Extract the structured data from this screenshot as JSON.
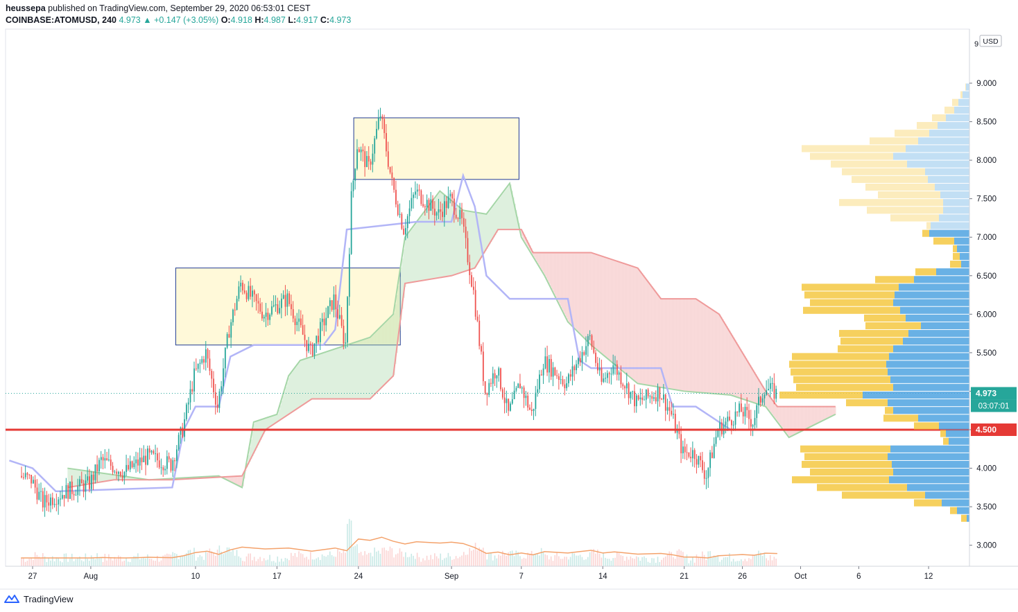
{
  "header": {
    "author": "heussepa",
    "published_text": "published on TradingView.com, September 29, 2020 06:53:01 CEST",
    "symbol": "COINBASE:ATOMUSD, 240",
    "last": "4.973",
    "change": "▲ +0.147 (+3.05%)",
    "o_label": "O:",
    "o_value": "4.918",
    "h_label": "H:",
    "h_value": "4.987",
    "l_label": "L:",
    "l_value": "4.917",
    "c_label": "C:",
    "c_value": "4.973"
  },
  "footer": {
    "brand": "TradingView"
  },
  "colors": {
    "up": "#26a69a",
    "down": "#ef5350",
    "base_line": "#b2b5f7",
    "cloud_green": "#a5d6a7",
    "cloud_red": "#ef9a9a",
    "box_fill": "#fff9d9",
    "box_border": "#1f3a93",
    "hline": "#e53935",
    "vp_up": "#4fa3e0",
    "vp_down": "#f5c842",
    "volume_ma": "#f4a26b"
  },
  "chart_data": {
    "type": "candlestick",
    "currency_label": "USD",
    "y_ticks": [
      "9.000",
      "8.500",
      "8.000",
      "7.500",
      "7.000",
      "6.500",
      "6.000",
      "5.500",
      "5.000",
      "4.500",
      "4.000",
      "3.500",
      "3.000"
    ],
    "ylim": [
      2.8,
      9.4
    ],
    "x_ticks": [
      "27",
      "Aug",
      "10",
      "17",
      "24",
      "Sep",
      "7",
      "14",
      "21",
      "26",
      "Oct",
      "6",
      "12"
    ],
    "close_path": [
      [
        "Jul 26",
        3.9
      ],
      [
        "Jul 27",
        3.85
      ],
      [
        "Jul 28",
        3.55
      ],
      [
        "Jul 30",
        3.7
      ],
      [
        "Aug 1",
        3.8
      ],
      [
        "Aug 2",
        4.1
      ],
      [
        "Aug 4",
        3.95
      ],
      [
        "Aug 6",
        4.15
      ],
      [
        "Aug 8",
        4.05
      ],
      [
        "Aug 9",
        4.5
      ],
      [
        "Aug 10",
        5.2
      ],
      [
        "Aug 11",
        5.5
      ],
      [
        "Aug 12",
        4.8
      ],
      [
        "Aug 13",
        5.8
      ],
      [
        "Aug 14",
        6.4
      ],
      [
        "Aug 16",
        6.0
      ],
      [
        "Aug 18",
        6.2
      ],
      [
        "Aug 20",
        5.5
      ],
      [
        "Aug 22",
        6.2
      ],
      [
        "Aug 23",
        5.6
      ],
      [
        "Aug 23.5",
        7.5
      ],
      [
        "Aug 24",
        8.2
      ],
      [
        "Aug 25",
        7.9
      ],
      [
        "Aug 26",
        8.6
      ],
      [
        "Aug 27",
        7.7
      ],
      [
        "Aug 28",
        7.1
      ],
      [
        "Aug 29",
        7.6
      ],
      [
        "Aug 31",
        7.3
      ],
      [
        "Sep 1",
        7.5
      ],
      [
        "Sep 2",
        7.2
      ],
      [
        "Sep 3",
        6.3
      ],
      [
        "Sep 4",
        5.0
      ],
      [
        "Sep 5",
        5.3
      ],
      [
        "Sep 6",
        4.7
      ],
      [
        "Sep 7",
        5.1
      ],
      [
        "Sep 8",
        4.7
      ],
      [
        "Sep 9",
        5.4
      ],
      [
        "Sep 11",
        5.1
      ],
      [
        "Sep 13",
        5.7
      ],
      [
        "Sep 14",
        5.1
      ],
      [
        "Sep 15",
        5.35
      ],
      [
        "Sep 17",
        4.85
      ],
      [
        "Sep 19",
        5.0
      ],
      [
        "Sep 20",
        4.7
      ],
      [
        "Sep 21",
        4.2
      ],
      [
        "Sep 22",
        4.2
      ],
      [
        "Sep 23",
        3.9
      ],
      [
        "Sep 24",
        4.5
      ],
      [
        "Sep 26",
        4.75
      ],
      [
        "Sep 27",
        4.6
      ],
      [
        "Sep 28",
        5.05
      ],
      [
        "Sep 29",
        4.973
      ]
    ],
    "kijun_sen": [
      [
        "Jul 25",
        4.1
      ],
      [
        "Jul 27",
        4.0
      ],
      [
        "Jul 29",
        3.7
      ],
      [
        "Aug 8",
        3.75
      ],
      [
        "Aug 9",
        4.5
      ],
      [
        "Aug 10",
        4.8
      ],
      [
        "Aug 12",
        4.8
      ],
      [
        "Aug 13",
        5.45
      ],
      [
        "Aug 15",
        5.6
      ],
      [
        "Aug 17",
        5.6
      ],
      [
        "Aug 21",
        5.6
      ],
      [
        "Aug 22",
        5.8
      ],
      [
        "Aug 23",
        7.1
      ],
      [
        "Aug 29",
        7.2
      ],
      [
        "Sep 1",
        7.2
      ],
      [
        "Sep 2",
        7.8
      ],
      [
        "Sep 3",
        7.4
      ],
      [
        "Sep 4",
        6.5
      ],
      [
        "Sep 6",
        6.2
      ],
      [
        "Sep 11",
        6.2
      ],
      [
        "Sep 12",
        5.4
      ],
      [
        "Sep 13",
        5.3
      ],
      [
        "Sep 19",
        5.3
      ],
      [
        "Sep 20",
        4.8
      ],
      [
        "Sep 22",
        4.8
      ],
      [
        "Sep 24",
        4.6
      ],
      [
        "Sep 25",
        4.5
      ]
    ],
    "cloud": {
      "senkou_a": [
        [
          "Jul 30",
          4.0
        ],
        [
          "Aug 6",
          3.85
        ],
        [
          "Aug 12",
          3.9
        ],
        [
          "Aug 14",
          3.75
        ],
        [
          "Aug 15",
          4.6
        ],
        [
          "Aug 17",
          4.7
        ],
        [
          "Aug 18",
          5.2
        ],
        [
          "Aug 19",
          5.4
        ],
        [
          "Aug 22",
          5.55
        ],
        [
          "Aug 25",
          5.7
        ],
        [
          "Aug 27",
          6.0
        ],
        [
          "Aug 28",
          7.0
        ],
        [
          "Aug 31",
          7.6
        ],
        [
          "Sep 2",
          7.35
        ],
        [
          "Sep 4",
          7.3
        ],
        [
          "Sep 6",
          7.7
        ],
        [
          "Sep 7",
          7.0
        ],
        [
          "Sep 9",
          6.5
        ],
        [
          "Sep 11",
          5.9
        ],
        [
          "Sep 13",
          5.6
        ],
        [
          "Sep 15",
          5.35
        ],
        [
          "Sep 17",
          5.1
        ],
        [
          "Sep 21",
          5.0
        ],
        [
          "Sep 25",
          4.95
        ],
        [
          "Sep 28",
          4.8
        ],
        [
          "Sep 30",
          4.4
        ],
        [
          "Oct 2",
          4.55
        ],
        [
          "Oct 4",
          4.7
        ]
      ],
      "senkou_b": [
        [
          "Jul 30",
          3.75
        ],
        [
          "Aug 3",
          3.85
        ],
        [
          "Aug 8",
          3.85
        ],
        [
          "Aug 14",
          3.9
        ],
        [
          "Aug 16",
          4.5
        ],
        [
          "Aug 20",
          4.9
        ],
        [
          "Aug 25",
          4.9
        ],
        [
          "Aug 27",
          5.2
        ],
        [
          "Aug 28",
          6.4
        ],
        [
          "Sep 1",
          6.5
        ],
        [
          "Sep 3",
          6.6
        ],
        [
          "Sep 5",
          7.1
        ],
        [
          "Sep 7",
          7.1
        ],
        [
          "Sep 8",
          6.8
        ],
        [
          "Sep 13",
          6.8
        ],
        [
          "Sep 17",
          6.6
        ],
        [
          "Sep 19",
          6.2
        ],
        [
          "Sep 22",
          6.2
        ],
        [
          "Sep 24",
          6.0
        ],
        [
          "Sep 26",
          5.5
        ],
        [
          "Sep 28",
          5.0
        ],
        [
          "Sep 29",
          4.8
        ],
        [
          "Oct 2",
          4.8
        ],
        [
          "Oct 4",
          4.8
        ]
      ]
    },
    "rectangles": [
      {
        "x0": "Aug 8.3",
        "x1": "Aug 27.6",
        "y0": 5.6,
        "y1": 6.6
      },
      {
        "x0": "Aug 23.6",
        "x1": "Sep 6.8",
        "y0": 7.75,
        "y1": 8.55
      }
    ],
    "horizontal_lines": [
      {
        "price": 4.5,
        "label": "4.500"
      }
    ],
    "last_price": {
      "price": 4.973,
      "label": "4.973",
      "countdown": "03:07:01"
    },
    "volume_profile": [
      {
        "price": 8.95,
        "up": 5,
        "down": 1
      },
      {
        "price": 8.85,
        "up": 10,
        "down": 3
      },
      {
        "price": 8.75,
        "up": 16,
        "down": 9
      },
      {
        "price": 8.65,
        "up": 22,
        "down": 14
      },
      {
        "price": 8.55,
        "up": 34,
        "down": 20
      },
      {
        "price": 8.45,
        "up": 46,
        "down": 30
      },
      {
        "price": 8.35,
        "up": 58,
        "down": 50
      },
      {
        "price": 8.25,
        "up": 74,
        "down": 70
      },
      {
        "price": 8.15,
        "up": 92,
        "down": 150
      },
      {
        "price": 8.05,
        "up": 110,
        "down": 120
      },
      {
        "price": 7.95,
        "up": 90,
        "down": 110
      },
      {
        "price": 7.85,
        "up": 64,
        "down": 120
      },
      {
        "price": 7.75,
        "up": 60,
        "down": 110
      },
      {
        "price": 7.65,
        "up": 50,
        "down": 100
      },
      {
        "price": 7.55,
        "up": 42,
        "down": 90
      },
      {
        "price": 7.45,
        "up": 38,
        "down": 150
      },
      {
        "price": 7.35,
        "up": 38,
        "down": 110
      },
      {
        "price": 7.25,
        "up": 44,
        "down": 70
      },
      {
        "price": 7.15,
        "up": 56,
        "down": 6
      },
      {
        "price": 7.05,
        "up": 58,
        "down": 10
      },
      {
        "price": 6.95,
        "up": 22,
        "down": 30
      },
      {
        "price": 6.85,
        "up": 18,
        "down": 6
      },
      {
        "price": 6.75,
        "up": 14,
        "down": 10
      },
      {
        "price": 6.65,
        "up": 12,
        "down": 16
      },
      {
        "price": 6.55,
        "up": 48,
        "down": 30
      },
      {
        "price": 6.45,
        "up": 80,
        "down": 56
      },
      {
        "price": 6.35,
        "up": 102,
        "down": 140
      },
      {
        "price": 6.25,
        "up": 108,
        "down": 130
      },
      {
        "price": 6.15,
        "up": 110,
        "down": 120
      },
      {
        "price": 6.05,
        "up": 100,
        "down": 140
      },
      {
        "price": 5.95,
        "up": 92,
        "down": 60
      },
      {
        "price": 5.85,
        "up": 70,
        "down": 80
      },
      {
        "price": 5.75,
        "up": 88,
        "down": 100
      },
      {
        "price": 5.65,
        "up": 96,
        "down": 90
      },
      {
        "price": 5.55,
        "up": 110,
        "down": 80
      },
      {
        "price": 5.45,
        "up": 116,
        "down": 140
      },
      {
        "price": 5.35,
        "up": 120,
        "down": 140
      },
      {
        "price": 5.25,
        "up": 118,
        "down": 140
      },
      {
        "price": 5.15,
        "up": 114,
        "down": 140
      },
      {
        "price": 5.05,
        "up": 110,
        "down": 140
      },
      {
        "price": 4.95,
        "up": 154,
        "down": 120
      },
      {
        "price": 4.85,
        "up": 118,
        "down": 60
      },
      {
        "price": 4.75,
        "up": 110,
        "down": 12
      },
      {
        "price": 4.65,
        "up": 74,
        "down": 50
      },
      {
        "price": 4.55,
        "up": 44,
        "down": 36
      },
      {
        "price": 4.45,
        "up": 34,
        "down": 8
      },
      {
        "price": 4.35,
        "up": 30,
        "down": 8
      },
      {
        "price": 4.25,
        "up": 114,
        "down": 130
      },
      {
        "price": 4.15,
        "up": 118,
        "down": 120
      },
      {
        "price": 4.05,
        "up": 112,
        "down": 130
      },
      {
        "price": 3.95,
        "up": 110,
        "down": 120
      },
      {
        "price": 3.85,
        "up": 116,
        "down": 140
      },
      {
        "price": 3.75,
        "up": 90,
        "down": 130
      },
      {
        "price": 3.65,
        "up": 64,
        "down": 120
      },
      {
        "price": 3.55,
        "up": 40,
        "down": 40
      },
      {
        "price": 3.45,
        "up": 18,
        "down": 10
      },
      {
        "price": 3.35,
        "up": 4,
        "down": 8
      }
    ]
  }
}
